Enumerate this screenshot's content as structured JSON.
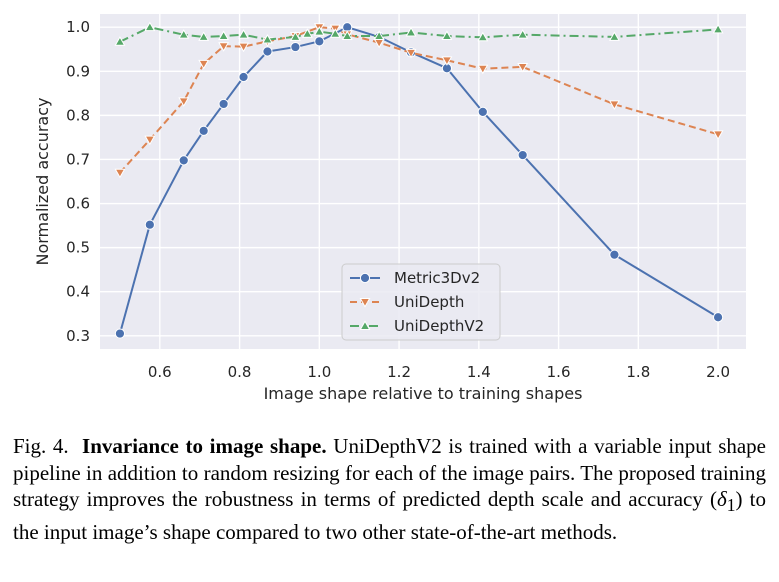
{
  "chart_data": {
    "type": "line",
    "xlabel": "Image shape relative to training shapes",
    "ylabel": "Normalized accuracy",
    "xlim": [
      0.45,
      2.07
    ],
    "ylim": [
      0.27,
      1.03
    ],
    "xticks": [
      0.6,
      0.8,
      1.0,
      1.2,
      1.4,
      1.6,
      1.8,
      2.0
    ],
    "xtick_labels": [
      "0.6",
      "0.8",
      "1.0",
      "1.2",
      "1.4",
      "1.6",
      "1.8",
      "2.0"
    ],
    "yticks": [
      0.3,
      0.4,
      0.5,
      0.6,
      0.7,
      0.8,
      0.9,
      1.0
    ],
    "ytick_labels": [
      "0.3",
      "0.4",
      "0.5",
      "0.6",
      "0.7",
      "0.8",
      "0.9",
      "1.0"
    ],
    "grid": true,
    "legend_position": "lower-center",
    "background": "#eaeaf2",
    "series": [
      {
        "name": "Metric3Dv2",
        "color": "#4c72b0",
        "line_style": "solid",
        "marker": "circle",
        "x": [
          0.5,
          0.575,
          0.66,
          0.71,
          0.76,
          0.81,
          0.87,
          0.94,
          1.0,
          1.07,
          1.15,
          1.23,
          1.32,
          1.41,
          1.51,
          1.74,
          2.0
        ],
        "y": [
          0.305,
          0.552,
          0.698,
          0.765,
          0.826,
          0.887,
          0.945,
          0.955,
          0.968,
          1.0,
          0.978,
          0.943,
          0.907,
          0.808,
          0.71,
          0.484,
          0.342
        ]
      },
      {
        "name": "UniDepth",
        "color": "#dd8452",
        "line_style": "dashed",
        "marker": "triangle-down",
        "x": [
          0.5,
          0.575,
          0.66,
          0.71,
          0.76,
          0.81,
          0.87,
          0.94,
          1.0,
          1.04,
          1.07,
          1.15,
          1.23,
          1.32,
          1.41,
          1.51,
          1.74,
          2.0
        ],
        "y": [
          0.67,
          0.745,
          0.832,
          0.917,
          0.957,
          0.956,
          0.968,
          0.98,
          1.0,
          0.997,
          0.984,
          0.965,
          0.942,
          0.925,
          0.906,
          0.91,
          0.825,
          0.757
        ]
      },
      {
        "name": "UniDepthV2",
        "color": "#55a868",
        "line_style": "dashdot",
        "marker": "triangle-up",
        "x": [
          0.5,
          0.575,
          0.66,
          0.71,
          0.76,
          0.81,
          0.87,
          0.94,
          0.97,
          1.0,
          1.04,
          1.07,
          1.15,
          1.23,
          1.32,
          1.41,
          1.51,
          1.74,
          2.0
        ],
        "y": [
          0.967,
          1.0,
          0.983,
          0.978,
          0.98,
          0.983,
          0.972,
          0.978,
          0.985,
          0.99,
          0.985,
          0.98,
          0.98,
          0.988,
          0.98,
          0.977,
          0.983,
          0.978,
          0.995
        ]
      }
    ]
  },
  "caption": {
    "label": "Fig. 4.",
    "heading": "Invariance to image shape.",
    "text_before_math": " UniDepthV2 is trained with a variable input shape pipeline in addition to random resizing for each of the image pairs. The proposed training strategy improves the robustness in terms of predicted depth scale and accuracy (",
    "math_symbol": "δ",
    "math_subscript": "1",
    "text_after_math": ") to the input image’s shape compared to two other state-of-the-art methods."
  }
}
